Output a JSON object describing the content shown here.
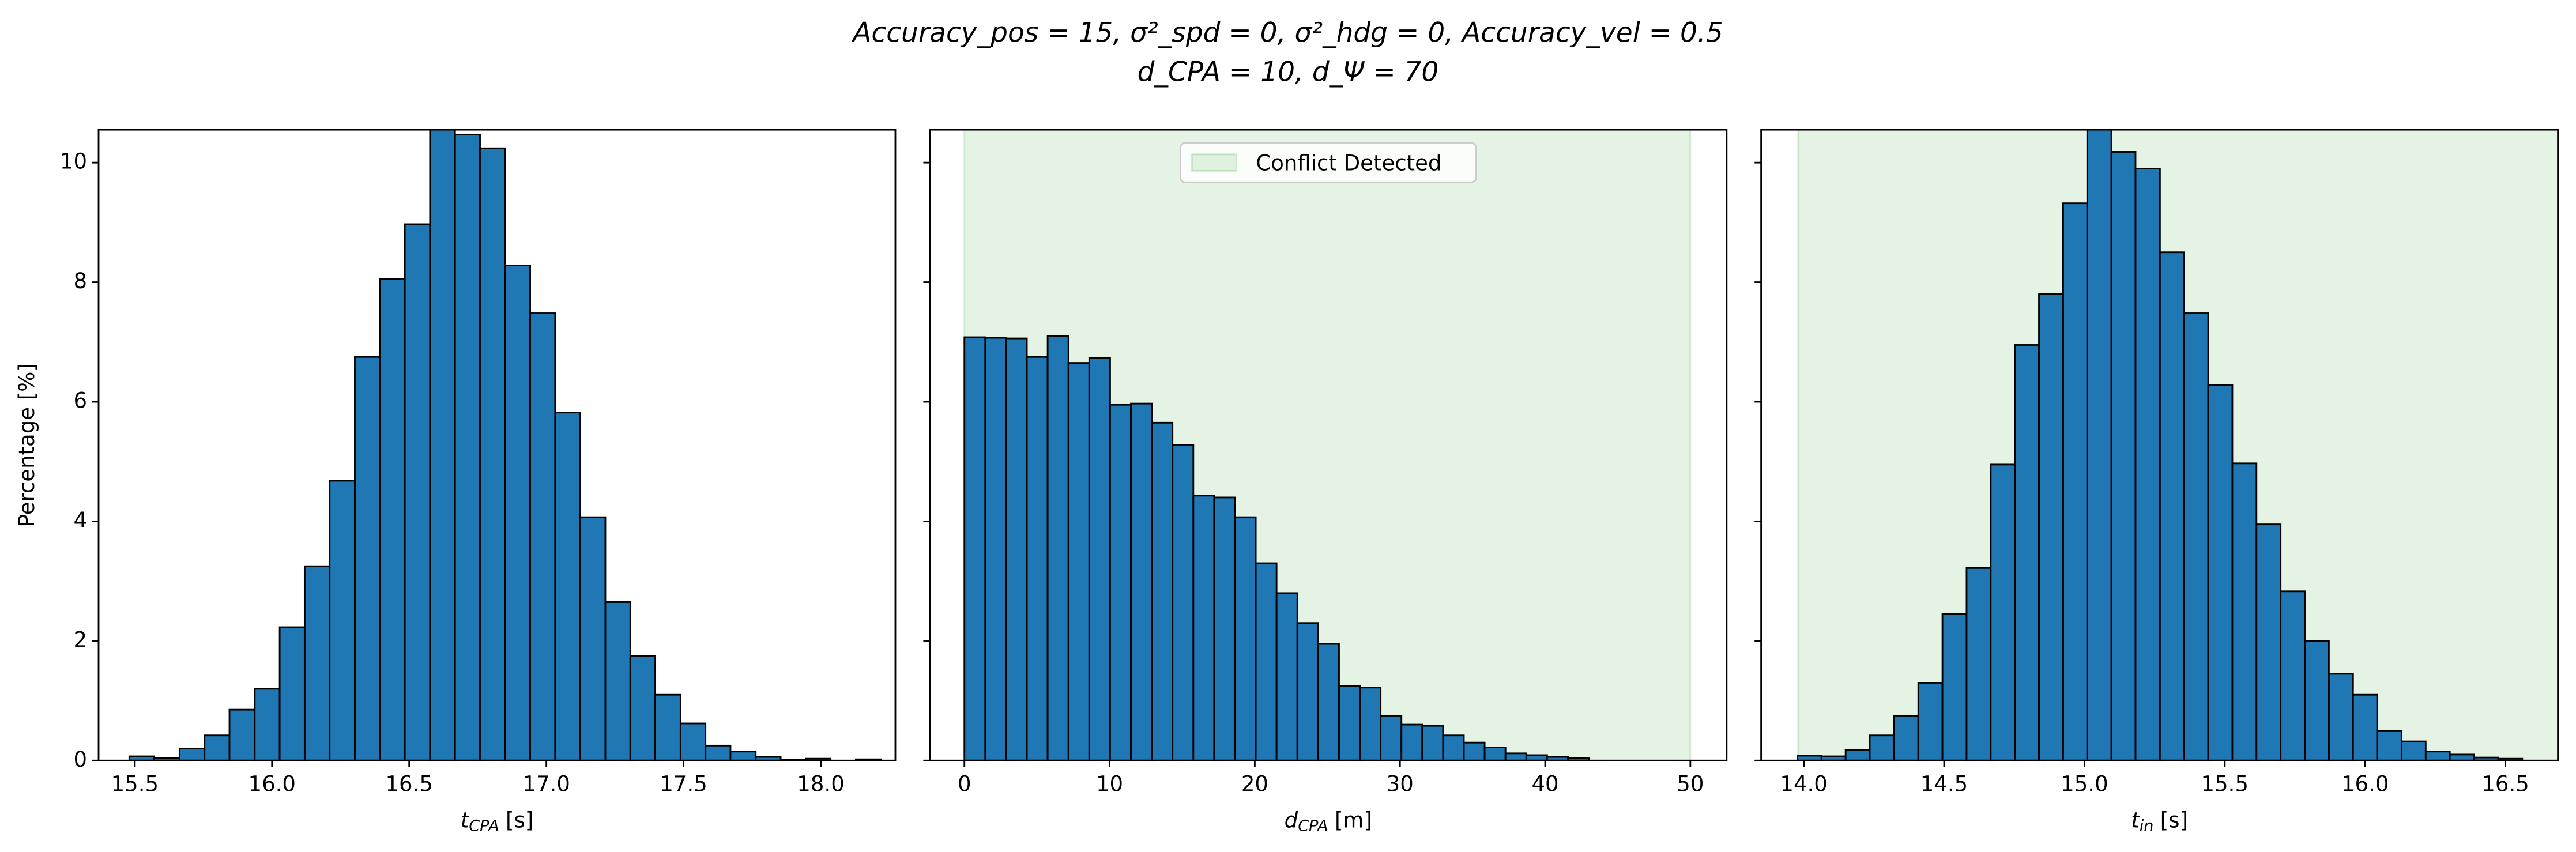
{
  "title": [
    "Accuracy_pos = 15, σ²_spd = 0, σ²_hdg = 0, Accuracy_vel = 0.5",
    "d_CPA = 10, d_Ψ = 70"
  ],
  "chart_data": [
    {
      "type": "histogram",
      "ylabel": "Percentage [%]",
      "xlabel": {
        "base": "t",
        "sub": "CPA",
        "unit": "[s]"
      },
      "color": "#1f77b4",
      "edgecolor": "#000000",
      "bins": [
        15.48,
        15.571,
        15.663,
        15.754,
        15.845,
        15.937,
        16.028,
        16.119,
        16.21,
        16.302,
        16.393,
        16.484,
        16.576,
        16.667,
        16.758,
        16.85,
        16.941,
        17.032,
        17.123,
        17.215,
        17.306,
        17.397,
        17.489,
        17.58,
        17.671,
        17.763,
        17.854,
        17.945,
        18.036,
        18.128,
        18.219
      ],
      "values": [
        0.07,
        0.04,
        0.2,
        0.42,
        0.85,
        1.2,
        2.23,
        3.25,
        4.68,
        6.75,
        8.05,
        8.97,
        10.7,
        10.47,
        10.24,
        8.28,
        7.48,
        5.82,
        4.07,
        2.65,
        1.75,
        1.1,
        0.62,
        0.25,
        0.15,
        0.06,
        0.01,
        0.03,
        0.0,
        0.02
      ],
      "xlim": [
        15.368,
        18.272
      ],
      "ylim": [
        0,
        10.55
      ],
      "xticks": [
        {
          "value": 15.5,
          "label": "15.5"
        },
        {
          "value": 16,
          "label": "16.0"
        },
        {
          "value": 16.5,
          "label": "16.5"
        },
        {
          "value": 17,
          "label": "17.0"
        },
        {
          "value": 17.5,
          "label": "17.5"
        },
        {
          "value": 18,
          "label": "18.0"
        }
      ],
      "yticks": [
        0,
        2,
        4,
        6,
        8,
        10
      ]
    },
    {
      "type": "histogram",
      "sharey": true,
      "xlabel": {
        "base": "d",
        "sub": "CPA",
        "unit": "[m]"
      },
      "color": "#1f77b4",
      "edgecolor": "#000000",
      "span": [
        0,
        50
      ],
      "span_color": "#2ca02c",
      "span_label": "Conflict Detected",
      "legend": "upper center",
      "bins": [
        0,
        1.433,
        2.867,
        4.3,
        5.733,
        7.167,
        8.6,
        10.033,
        11.467,
        12.9,
        14.333,
        15.767,
        17.2,
        18.633,
        20.067,
        21.5,
        22.933,
        24.367,
        25.8,
        27.233,
        28.667,
        30.1,
        31.533,
        32.967,
        34.4,
        35.833,
        37.267,
        38.7,
        40.133,
        41.567,
        43.0
      ],
      "values": [
        7.08,
        7.07,
        7.06,
        6.75,
        7.1,
        6.65,
        6.73,
        5.95,
        5.97,
        5.65,
        5.28,
        4.43,
        4.4,
        4.07,
        3.3,
        2.8,
        2.3,
        1.95,
        1.25,
        1.22,
        0.75,
        0.6,
        0.58,
        0.42,
        0.3,
        0.22,
        0.12,
        0.09,
        0.06,
        0.04
      ],
      "xlim": [
        -2.38,
        52.5
      ],
      "ylim": [
        0,
        10.55
      ],
      "xticks": [
        0,
        10,
        20,
        30,
        40,
        50
      ]
    },
    {
      "type": "histogram",
      "sharey": true,
      "xlabel": {
        "base": "t",
        "sub": "in",
        "unit": "[s]"
      },
      "color": "#1f77b4",
      "edgecolor": "#000000",
      "span": [
        13.98,
        16.8
      ],
      "span_color": "#2ca02c",
      "bins": [
        13.977,
        14.063,
        14.149,
        14.235,
        14.321,
        14.408,
        14.494,
        14.58,
        14.666,
        14.752,
        14.838,
        14.924,
        15.01,
        15.096,
        15.182,
        15.269,
        15.355,
        15.441,
        15.527,
        15.613,
        15.699,
        15.785,
        15.871,
        15.957,
        16.043,
        16.13,
        16.216,
        16.302,
        16.388,
        16.474,
        16.56
      ],
      "values": [
        0.08,
        0.07,
        0.18,
        0.42,
        0.75,
        1.3,
        2.45,
        3.22,
        4.95,
        6.95,
        7.8,
        9.32,
        10.7,
        10.18,
        9.9,
        8.5,
        7.48,
        6.28,
        4.97,
        3.95,
        2.83,
        2.0,
        1.45,
        1.1,
        0.5,
        0.32,
        0.15,
        0.1,
        0.05,
        0.03
      ],
      "xlim": [
        13.848,
        16.687
      ],
      "ylim": [
        0,
        10.55
      ],
      "xticks": [
        {
          "value": 14,
          "label": "14.0"
        },
        {
          "value": 14.5,
          "label": "14.5"
        },
        {
          "value": 15,
          "label": "15.0"
        },
        {
          "value": 15.5,
          "label": "15.5"
        },
        {
          "value": 16,
          "label": "16.0"
        },
        {
          "value": 16.5,
          "label": "16.5"
        }
      ]
    }
  ]
}
